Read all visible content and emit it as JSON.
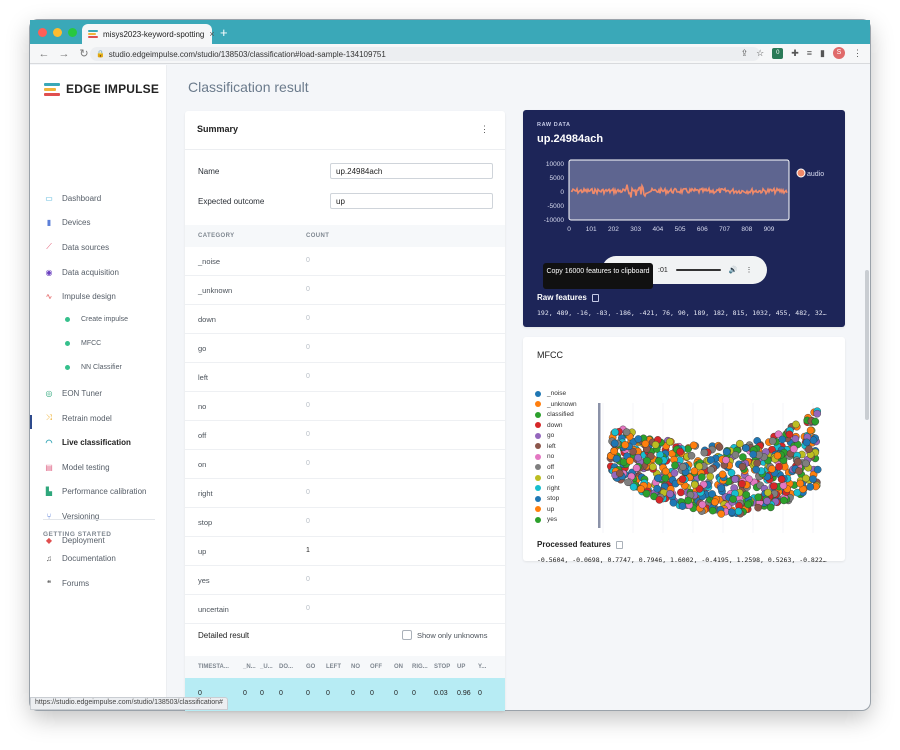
{
  "browser": {
    "tab_title": "misys2023-keyword-spotting",
    "tab_close": "×",
    "new_tab": "+",
    "url": "studio.edgeimpulse.com/studio/138503/classification#load-sample-134109751",
    "ext_badge": "0",
    "profile_initial": "S",
    "status_url": "https://studio.edgeimpulse.com/studio/138503/classification#"
  },
  "sidebar": {
    "logo_text": "EDGE IMPULSE",
    "items": [
      {
        "label": "Dashboard",
        "icon": "monitor-icon",
        "color": "#47b0d8"
      },
      {
        "label": "Devices",
        "icon": "devices-icon",
        "color": "#5c7fd8"
      },
      {
        "label": "Data sources",
        "icon": "data-sources-icon",
        "color": "#e04f6a"
      },
      {
        "label": "Data acquisition",
        "icon": "database-icon",
        "color": "#6a3fbf"
      },
      {
        "label": "Impulse design",
        "icon": "pulse-icon",
        "color": "#e04f4f"
      },
      {
        "label": "EON Tuner",
        "icon": "tuner-icon",
        "color": "#2fa77c"
      },
      {
        "label": "Retrain model",
        "icon": "shuffle-icon",
        "color": "#f0b43a"
      },
      {
        "label": "Live classification",
        "icon": "live-icon",
        "color": "#3aa8b8"
      },
      {
        "label": "Model testing",
        "icon": "clipboard-icon",
        "color": "#e06a8a"
      },
      {
        "label": "Performance calibration",
        "icon": "chart-icon",
        "color": "#2fa77c"
      },
      {
        "label": "Versioning",
        "icon": "branch-icon",
        "color": "#5c7fd8"
      },
      {
        "label": "Deployment",
        "icon": "cube-icon",
        "color": "#e04f4f"
      }
    ],
    "sub_items": [
      "Create impulse",
      "MFCC",
      "NN Classifier"
    ],
    "section_title": "GETTING STARTED",
    "help_items": [
      {
        "label": "Documentation",
        "icon": "docs-icon"
      },
      {
        "label": "Forums",
        "icon": "forums-icon"
      }
    ]
  },
  "main": {
    "page_title": "Classification result"
  },
  "summary": {
    "title": "Summary",
    "menu": "⋮",
    "name_label": "Name",
    "name_value": "up.24984ach",
    "expected_label": "Expected outcome",
    "expected_value": "up",
    "col_category": "CATEGORY",
    "col_count": "COUNT",
    "rows": [
      {
        "category": "_noise",
        "count": "0"
      },
      {
        "category": "_unknown",
        "count": "0"
      },
      {
        "category": "down",
        "count": "0"
      },
      {
        "category": "go",
        "count": "0"
      },
      {
        "category": "left",
        "count": "0"
      },
      {
        "category": "no",
        "count": "0"
      },
      {
        "category": "off",
        "count": "0"
      },
      {
        "category": "on",
        "count": "0"
      },
      {
        "category": "right",
        "count": "0"
      },
      {
        "category": "stop",
        "count": "0"
      },
      {
        "category": "up",
        "count": "1"
      },
      {
        "category": "yes",
        "count": "0"
      },
      {
        "category": "uncertain",
        "count": "0"
      }
    ],
    "detailed_title": "Detailed result",
    "show_unknowns": "Show only unknowns",
    "detail_headers": [
      "TIMESTA...",
      "_N...",
      "_U...",
      "DO...",
      "GO",
      "LEFT",
      "NO",
      "OFF",
      "ON",
      "RIG...",
      "STOP",
      "UP",
      "Y..."
    ],
    "detail_row": [
      "0",
      "0",
      "0",
      "0",
      "0",
      "0",
      "0",
      "0",
      "0",
      "0",
      "0.03",
      "0.96",
      "0"
    ]
  },
  "raw": {
    "label": "RAW DATA",
    "title": "up.24984ach",
    "y_ticks": [
      "10000",
      "5000",
      "0",
      "-5000",
      "-10000"
    ],
    "x_ticks": [
      "0",
      "101",
      "202",
      "303",
      "404",
      "505",
      "606",
      "707",
      "808",
      "909"
    ],
    "legend": "audio",
    "tooltip": "Copy 16000 features to clipboard",
    "player_time": ":01",
    "features_label": "Raw features",
    "features_value": "192, 489, -16, -83, -186, -421, 76, 90, 189, 182, 815, 1032, 455, 482, 32…"
  },
  "mfcc": {
    "title": "MFCC",
    "legend": [
      {
        "label": "_noise",
        "color": "#1f77b4"
      },
      {
        "label": "_unknown",
        "color": "#ff7f0e"
      },
      {
        "label": "classified",
        "color": "#2ca02c"
      },
      {
        "label": "down",
        "color": "#d62728"
      },
      {
        "label": "go",
        "color": "#9467bd"
      },
      {
        "label": "left",
        "color": "#8c564b"
      },
      {
        "label": "no",
        "color": "#e377c2"
      },
      {
        "label": "off",
        "color": "#7f7f7f"
      },
      {
        "label": "on",
        "color": "#bcbd22"
      },
      {
        "label": "right",
        "color": "#17becf"
      },
      {
        "label": "stop",
        "color": "#1f77b4"
      },
      {
        "label": "up",
        "color": "#ff7f0e"
      },
      {
        "label": "yes",
        "color": "#2ca02c"
      }
    ],
    "processed_label": "Processed features",
    "processed_value": "-0.5604, -0.0698, 0.7747, 0.7946, 1.6002, -0.4195, 1.2598, 0.5263, -0.822…"
  }
}
